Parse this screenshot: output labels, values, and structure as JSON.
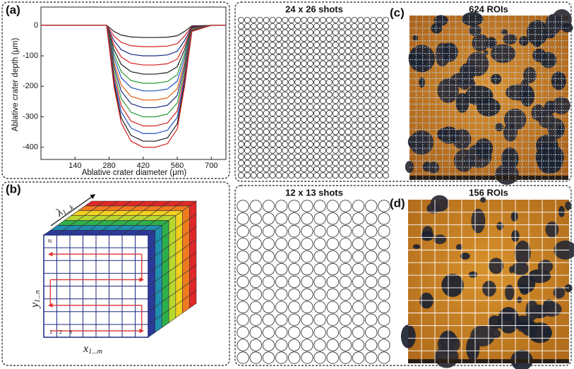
{
  "chart_data": {
    "type": "line",
    "y_label": "Ablative crater depth (μm)",
    "x_label": "Ablative crater diameter (μm)",
    "x": [
      0,
      200,
      270,
      300,
      330,
      370,
      420,
      470,
      520,
      560,
      590,
      620,
      700,
      760
    ],
    "xlim": [
      0,
      760
    ],
    "ylim": [
      -440,
      60
    ],
    "xticks": [
      140,
      280,
      420,
      560,
      700
    ],
    "yticks": [
      0,
      -100,
      -200,
      -300,
      -400
    ],
    "series": [
      {
        "color": "#1a1a1a",
        "values": [
          0,
          0,
          0,
          -20,
          -32,
          -38,
          -40,
          -40,
          -39,
          -34,
          -20,
          -2,
          0,
          0
        ]
      },
      {
        "color": "#d42020",
        "values": [
          0,
          0,
          0,
          -35,
          -56,
          -67,
          -70,
          -70,
          -68,
          -60,
          -35,
          -4,
          0,
          0
        ]
      },
      {
        "color": "#1c2a80",
        "values": [
          0,
          0,
          0,
          -50,
          -80,
          -95,
          -100,
          -100,
          -97,
          -85,
          -50,
          -5,
          0,
          0
        ]
      },
      {
        "color": "#d42020",
        "values": [
          0,
          0,
          0,
          -65,
          -104,
          -124,
          -130,
          -130,
          -126,
          -111,
          -65,
          -7,
          0,
          0
        ]
      },
      {
        "color": "#1a1a1a",
        "values": [
          0,
          0,
          0,
          -80,
          -128,
          -152,
          -160,
          -160,
          -155,
          -136,
          -80,
          -8,
          0,
          0
        ]
      },
      {
        "color": "#2a9a3a",
        "values": [
          0,
          0,
          0,
          -95,
          -152,
          -181,
          -190,
          -190,
          -184,
          -162,
          -95,
          -10,
          0,
          0
        ]
      },
      {
        "color": "#2050c0",
        "values": [
          0,
          0,
          0,
          -108,
          -172,
          -204,
          -215,
          -215,
          -209,
          -183,
          -108,
          -11,
          0,
          0
        ]
      },
      {
        "color": "#e06010",
        "values": [
          0,
          0,
          0,
          -123,
          -196,
          -233,
          -245,
          -245,
          -238,
          -208,
          -123,
          -12,
          0,
          0
        ]
      },
      {
        "color": "#1c2a80",
        "values": [
          0,
          0,
          0,
          -135,
          -216,
          -257,
          -270,
          -270,
          -262,
          -230,
          -135,
          -14,
          0,
          0
        ]
      },
      {
        "color": "#2a9a3a",
        "values": [
          0,
          0,
          0,
          -150,
          -240,
          -285,
          -300,
          -300,
          -291,
          -255,
          -150,
          -15,
          0,
          0
        ]
      },
      {
        "color": "#d42020",
        "values": [
          0,
          0,
          0,
          -165,
          -264,
          -314,
          -330,
          -330,
          -320,
          -281,
          -165,
          -17,
          0,
          0
        ]
      },
      {
        "color": "#2050c0",
        "values": [
          0,
          0,
          0,
          -178,
          -284,
          -337,
          -355,
          -355,
          -344,
          -302,
          -178,
          -18,
          0,
          0
        ]
      },
      {
        "color": "#1a1a1a",
        "values": [
          0,
          0,
          0,
          -190,
          -304,
          -361,
          -380,
          -380,
          -369,
          -323,
          -190,
          -19,
          0,
          0
        ]
      },
      {
        "color": "#d42020",
        "values": [
          0,
          0,
          0,
          -200,
          -320,
          -380,
          -400,
          -400,
          -388,
          -340,
          -200,
          -20,
          0,
          0
        ]
      }
    ]
  },
  "panel_a": {
    "label": "(a)"
  },
  "panel_b": {
    "label": "(b)",
    "lambda": "λ",
    "lambda_sub": "1...k",
    "y": "y",
    "y_sub": "1...n",
    "x": "x",
    "x_sub": "1...m",
    "corner": "N",
    "steps": [
      "1",
      "2",
      "3"
    ]
  },
  "panel_top": {
    "shots": "24 x 26 shots",
    "label": "(c)",
    "rois": "624 ROIs"
  },
  "panel_bottom": {
    "shots": "12 x 13 shots",
    "label": "(d)",
    "rois": "156 ROIs"
  }
}
